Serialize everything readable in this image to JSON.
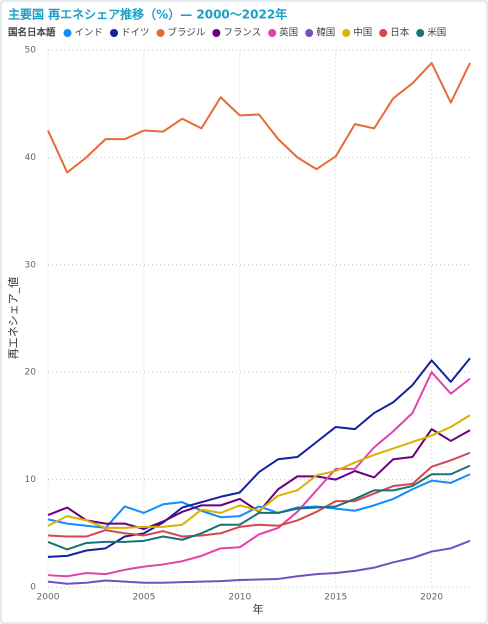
{
  "chart_data": {
    "type": "line",
    "title": "主要国 再エネシェア推移（%）— 2000〜2022年",
    "legend_title": "国名日本語",
    "x_label": "年",
    "y_label": "再エネシェア_値",
    "x": [
      2000,
      2001,
      2002,
      2003,
      2004,
      2005,
      2006,
      2007,
      2008,
      2009,
      2010,
      2011,
      2012,
      2013,
      2014,
      2015,
      2016,
      2017,
      2018,
      2019,
      2020,
      2021,
      2022
    ],
    "xlim": [
      2000,
      2022
    ],
    "xticks": [
      2000,
      2005,
      2010,
      2015,
      2020
    ],
    "ylim": [
      0,
      50
    ],
    "yticks": [
      0,
      10,
      20,
      30,
      40,
      50
    ],
    "grid": true,
    "series": [
      {
        "name": "インド",
        "color": "#118dff",
        "values": [
          6.3,
          5.9,
          5.7,
          5.5,
          7.5,
          6.9,
          7.7,
          7.9,
          7.1,
          6.5,
          6.6,
          7.5,
          6.9,
          7.4,
          7.5,
          7.3,
          7.1,
          7.6,
          8.2,
          9.1,
          9.9,
          9.7,
          10.5
        ]
      },
      {
        "name": "ドイツ",
        "color": "#12239e",
        "values": [
          2.8,
          2.9,
          3.4,
          3.6,
          4.7,
          5.0,
          6.0,
          7.4,
          7.9,
          8.4,
          8.8,
          10.7,
          11.9,
          12.1,
          13.5,
          14.9,
          14.7,
          16.2,
          17.2,
          18.8,
          21.1,
          19.1,
          21.3
        ]
      },
      {
        "name": "ブラジル",
        "color": "#e66c37",
        "values": [
          42.5,
          38.6,
          40.0,
          41.7,
          41.7,
          42.5,
          42.4,
          43.6,
          42.7,
          45.6,
          43.9,
          44.0,
          41.7,
          40.0,
          38.9,
          40.1,
          43.1,
          42.7,
          45.5,
          46.9,
          48.8,
          45.1,
          48.8
        ]
      },
      {
        "name": "フランス",
        "color": "#6b007b",
        "values": [
          6.7,
          7.4,
          6.2,
          5.9,
          5.9,
          5.4,
          6.1,
          7.0,
          7.6,
          7.6,
          8.2,
          7.0,
          9.1,
          10.3,
          10.3,
          10.0,
          10.8,
          10.2,
          11.9,
          12.1,
          14.7,
          13.6,
          14.6
        ]
      },
      {
        "name": "英国",
        "color": "#e044a7",
        "values": [
          1.1,
          1.0,
          1.3,
          1.2,
          1.6,
          1.9,
          2.1,
          2.4,
          2.9,
          3.6,
          3.7,
          4.9,
          5.5,
          7.0,
          9.0,
          11.0,
          11.0,
          13.0,
          14.5,
          16.2,
          20.0,
          18.0,
          19.4
        ]
      },
      {
        "name": "韓国",
        "color": "#744ec2",
        "values": [
          0.5,
          0.3,
          0.4,
          0.6,
          0.5,
          0.4,
          0.4,
          0.45,
          0.5,
          0.55,
          0.65,
          0.7,
          0.75,
          1.0,
          1.2,
          1.3,
          1.5,
          1.8,
          2.3,
          2.7,
          3.3,
          3.6,
          4.3
        ]
      },
      {
        "name": "中国",
        "color": "#d9b300",
        "values": [
          5.7,
          6.6,
          6.2,
          5.5,
          5.5,
          5.6,
          5.6,
          5.8,
          7.2,
          6.9,
          7.6,
          7.1,
          8.5,
          9.0,
          10.4,
          10.8,
          11.6,
          12.3,
          12.9,
          13.5,
          14.1,
          14.9,
          16.0
        ]
      },
      {
        "name": "日本",
        "color": "#d64550",
        "values": [
          4.8,
          4.7,
          4.7,
          5.3,
          5.0,
          4.8,
          5.2,
          4.7,
          4.8,
          5.0,
          5.6,
          5.8,
          5.7,
          6.2,
          7.0,
          8.0,
          8.0,
          8.7,
          9.4,
          9.6,
          11.2,
          11.8,
          12.5
        ]
      },
      {
        "name": "米国",
        "color": "#197278",
        "values": [
          4.2,
          3.5,
          4.1,
          4.2,
          4.2,
          4.3,
          4.7,
          4.4,
          5.0,
          5.8,
          5.8,
          6.9,
          6.9,
          7.3,
          7.4,
          7.5,
          8.2,
          9.0,
          9.0,
          9.4,
          10.5,
          10.5,
          11.3
        ]
      }
    ]
  }
}
